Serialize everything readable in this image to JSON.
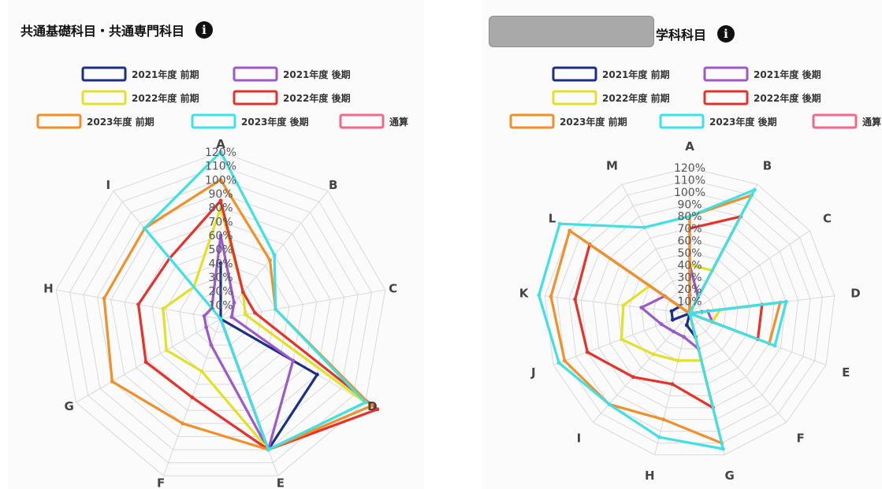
{
  "left_panel": {
    "title": "共通基礎科目・共通専門科目",
    "info_icon": "info-circle-icon"
  },
  "right_panel": {
    "title_suffix": "学科科目",
    "info_icon": "info-circle-icon"
  },
  "chart_data": [
    {
      "type": "radar",
      "title": "共通基礎科目・共通専門科目",
      "axes": [
        "A",
        "B",
        "C",
        "D",
        "E",
        "F",
        "G",
        "H",
        "I"
      ],
      "range": [
        0,
        120
      ],
      "ticks": [
        "10%",
        "20%",
        "30%",
        "40%",
        "50%",
        "60%",
        "70%",
        "80%",
        "90%",
        "100%",
        "110%",
        "120%"
      ],
      "legend_placement": "top",
      "series": [
        {
          "name": "2021年度 前期",
          "color": "#1c2f86",
          "values": [
            40,
            0,
            0,
            80,
            100,
            0,
            0,
            0,
            0
          ]
        },
        {
          "name": "2021年度 後期",
          "color": "#9b59c9",
          "values": [
            60,
            15,
            8,
            60,
            100,
            20,
            12,
            12,
            10
          ]
        },
        {
          "name": "2022年度 前期",
          "color": "#e3e02a",
          "values": [
            80,
            25,
            18,
            120,
            100,
            40,
            45,
            42,
            30
          ]
        },
        {
          "name": "2022年度 後期",
          "color": "#e5322b",
          "values": [
            85,
            25,
            25,
            130,
            100,
            60,
            62,
            60,
            57
          ]
        },
        {
          "name": "2023年度 前期",
          "color": "#f0902a",
          "values": [
            100,
            55,
            40,
            125,
            100,
            80,
            90,
            85,
            85
          ]
        },
        {
          "name": "2023年度 後期",
          "color": "#3fe0e6",
          "values": [
            120,
            60,
            40,
            120,
            100,
            0,
            0,
            0,
            85
          ]
        },
        {
          "name": "通算",
          "color": "#f06a8c",
          "values": []
        }
      ]
    },
    {
      "type": "radar",
      "title": "学科科目",
      "axes": [
        "A",
        "B",
        "C",
        "D",
        "E",
        "F",
        "G",
        "H",
        "I",
        "J",
        "K",
        "L",
        "M"
      ],
      "range": [
        0,
        120
      ],
      "ticks": [
        "10%",
        "20%",
        "30%",
        "40%",
        "50%",
        "60%",
        "70%",
        "80%",
        "90%",
        "100%",
        "110%",
        "120%"
      ],
      "legend_placement": "top",
      "series": [
        {
          "name": "2021年度 前期",
          "color": "#1c2f86",
          "values": [
            15,
            0,
            0,
            10,
            0,
            0,
            20,
            10,
            0,
            15,
            15,
            10,
            0
          ]
        },
        {
          "name": "2021年度 後期",
          "color": "#9b59c9",
          "values": [
            40,
            15,
            0,
            15,
            20,
            0,
            30,
            20,
            20,
            25,
            40,
            25,
            0
          ]
        },
        {
          "name": "2022年度 前期",
          "color": "#e3e02a",
          "values": [
            40,
            40,
            0,
            25,
            20,
            0,
            40,
            40,
            45,
            60,
            55,
            40,
            0
          ]
        },
        {
          "name": "2022年度 後期",
          "color": "#e5322b",
          "values": [
            70,
            90,
            0,
            60,
            60,
            0,
            80,
            60,
            70,
            90,
            95,
            100,
            0
          ]
        },
        {
          "name": "2023年度 前期",
          "color": "#f0902a",
          "values": [
            80,
            110,
            0,
            75,
            70,
            0,
            110,
            90,
            100,
            110,
            115,
            120,
            0
          ]
        },
        {
          "name": "2023年度 後期",
          "color": "#3fe0e6",
          "values": [
            80,
            115,
            0,
            80,
            75,
            0,
            115,
            105,
            100,
            115,
            125,
            130,
            80
          ]
        },
        {
          "name": "通算",
          "color": "#f06a8c",
          "values": []
        }
      ]
    }
  ]
}
